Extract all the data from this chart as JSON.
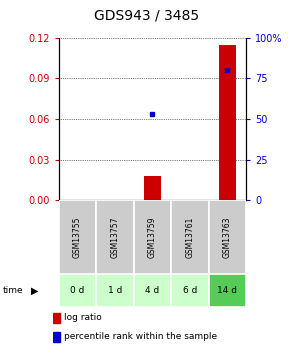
{
  "title": "GDS943 / 3485",
  "samples": [
    "GSM13755",
    "GSM13757",
    "GSM13759",
    "GSM13761",
    "GSM13763"
  ],
  "time_labels": [
    "0 d",
    "1 d",
    "4 d",
    "6 d",
    "14 d"
  ],
  "log_ratio": [
    0.0,
    0.0,
    0.018,
    0.0,
    0.115
  ],
  "percentile_rank": [
    null,
    null,
    53.0,
    null,
    80.0
  ],
  "ylim_left": [
    0,
    0.12
  ],
  "ylim_right": [
    0,
    100
  ],
  "yticks_left": [
    0,
    0.03,
    0.06,
    0.09,
    0.12
  ],
  "yticks_right": [
    0,
    25,
    50,
    75,
    100
  ],
  "bar_color": "#cc0000",
  "dot_color": "#0000cc",
  "bg_color": "#ffffff",
  "sample_bg": "#cccccc",
  "time_bg_colors": [
    "#ccffcc",
    "#ccffcc",
    "#ccffcc",
    "#ccffcc",
    "#55cc55"
  ],
  "left_tick_color": "#cc0000",
  "right_tick_color": "#0000cc",
  "title_fontsize": 10,
  "tick_fontsize": 7,
  "label_fontsize": 7,
  "bar_width": 0.45
}
